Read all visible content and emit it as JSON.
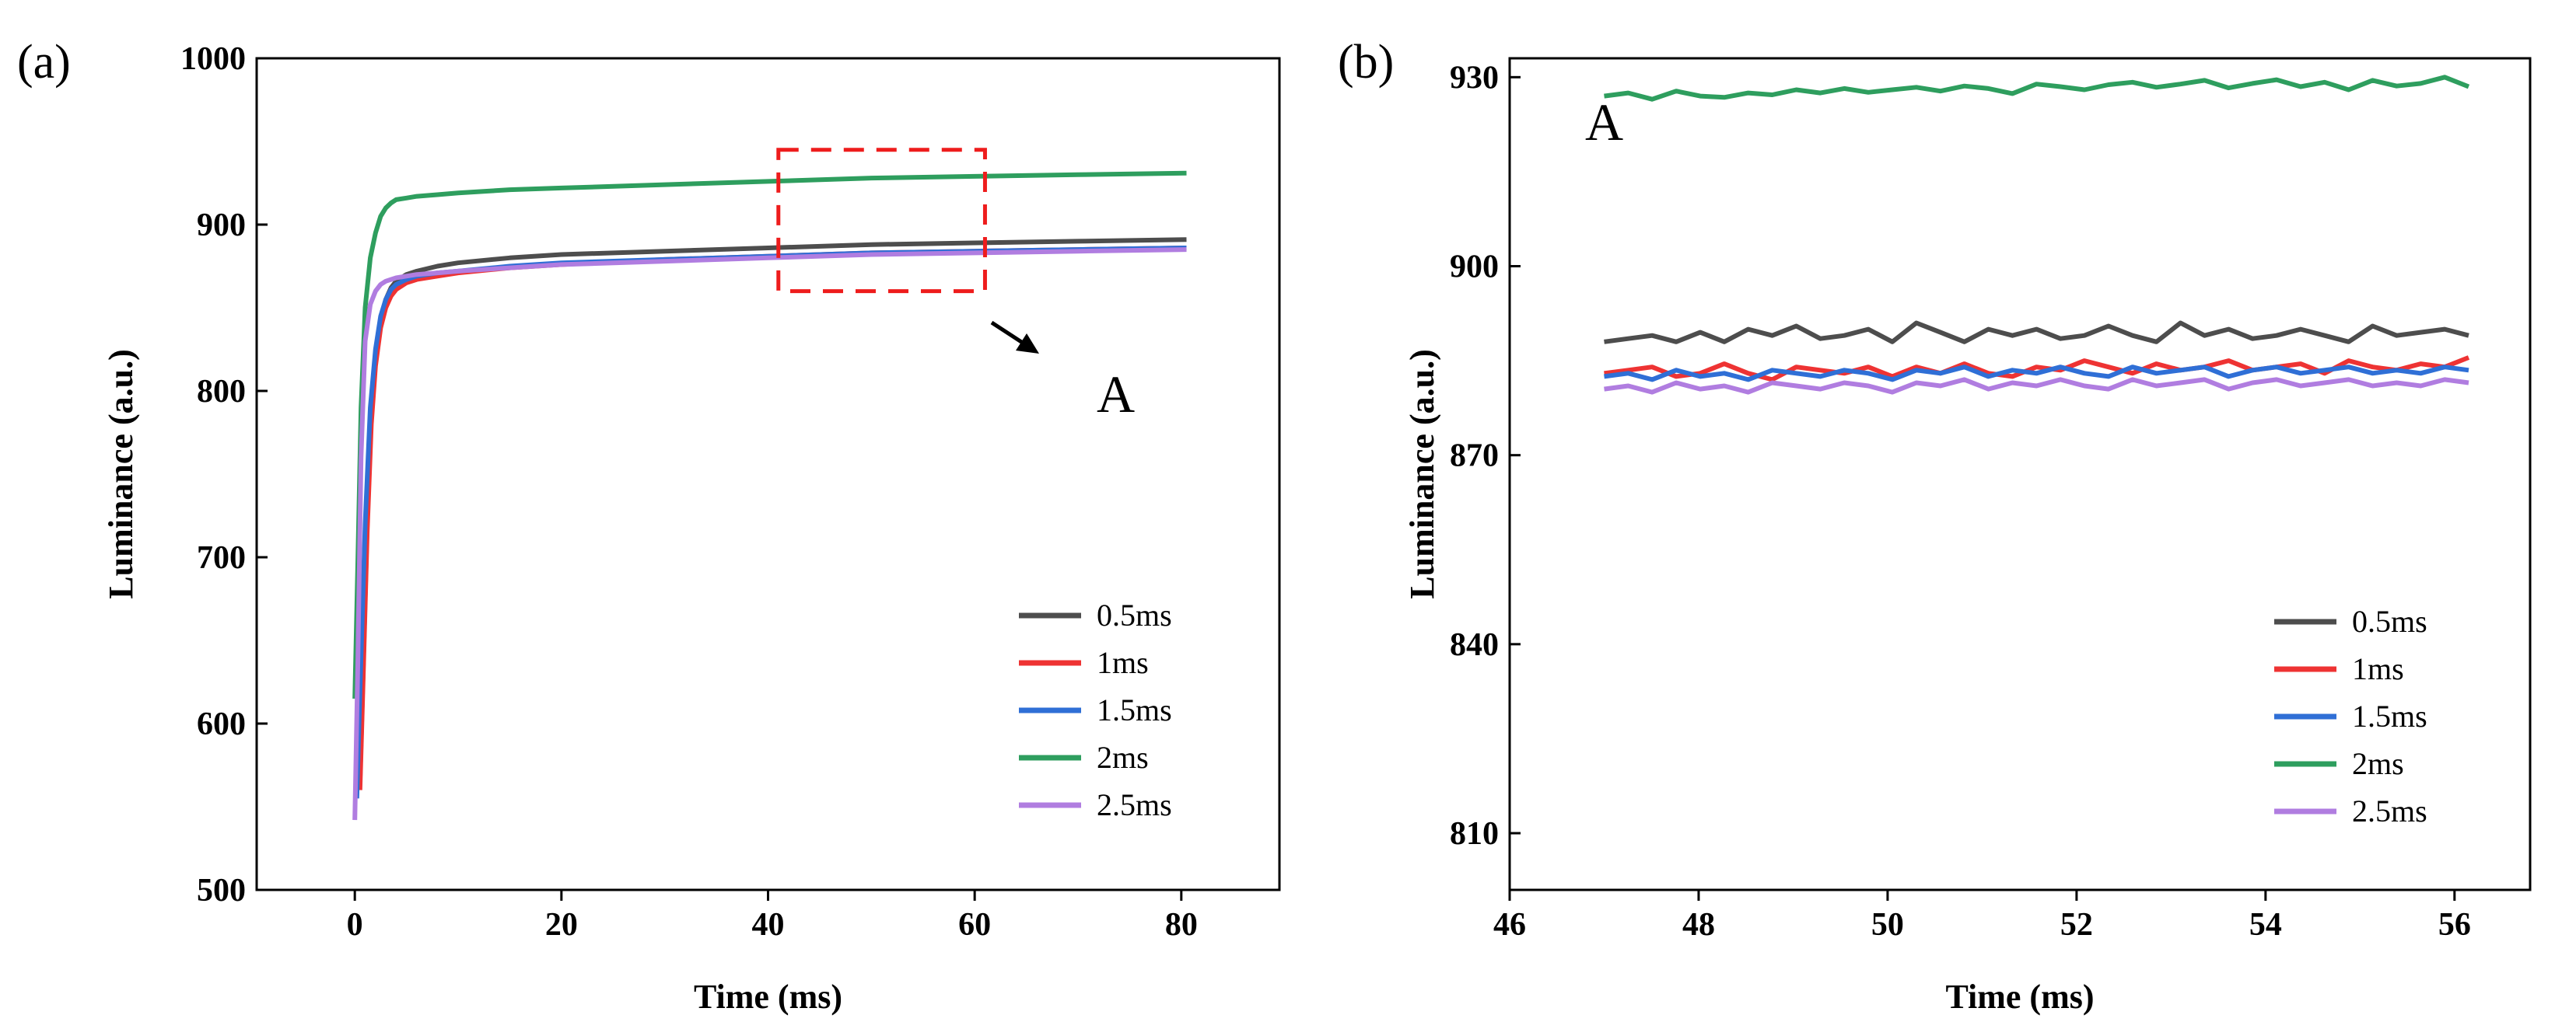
{
  "chart_data": [
    {
      "panel_label": "(a)",
      "type": "line",
      "xlabel": "Time (ms)",
      "ylabel": "Luminance (a.u.)",
      "xlim": [
        -9.5,
        89.5
      ],
      "ylim": [
        500,
        1000
      ],
      "xticks": [
        0,
        20,
        40,
        60,
        80
      ],
      "yticks": [
        500,
        600,
        700,
        800,
        900,
        1000
      ],
      "legend_position": "bottom-right",
      "zoom_box": {
        "x": [
          41,
          61
        ],
        "y": [
          860,
          945
        ]
      },
      "annotation": "A",
      "series": [
        {
          "name": "0.5ms",
          "color": "#4d4d4d",
          "x": [
            0.5,
            0.8,
            1.2,
            1.6,
            2,
            2.5,
            3,
            3.5,
            4,
            5,
            6,
            8,
            10,
            15,
            20,
            30,
            40,
            50,
            60,
            70,
            80.5
          ],
          "y": [
            565,
            630,
            720,
            785,
            820,
            843,
            855,
            862,
            866,
            870,
            872,
            875,
            877,
            880,
            882,
            884,
            886,
            888,
            889,
            890,
            891
          ]
        },
        {
          "name": "1ms",
          "color": "#ee3333",
          "x": [
            0.5,
            0.8,
            1.2,
            1.6,
            2,
            2.5,
            3,
            3.5,
            4,
            5,
            6,
            8,
            10,
            15,
            20,
            30,
            40,
            50,
            60,
            70,
            80.5
          ],
          "y": [
            560,
            625,
            715,
            780,
            815,
            838,
            850,
            857,
            861,
            865,
            867,
            869,
            871,
            874,
            876,
            879,
            881,
            883,
            884,
            885,
            886
          ]
        },
        {
          "name": "1.5ms",
          "color": "#2f6fd6",
          "x": [
            0.2,
            0.5,
            1,
            1.5,
            2,
            2.5,
            3,
            3.5,
            4,
            5,
            6,
            8,
            10,
            15,
            20,
            30,
            40,
            50,
            60,
            70,
            80.5
          ],
          "y": [
            555,
            620,
            720,
            790,
            825,
            845,
            855,
            861,
            864,
            867,
            869,
            871,
            872,
            875,
            877,
            879,
            881,
            883,
            884,
            885,
            886
          ]
        },
        {
          "name": "2ms",
          "color": "#2e9e5e",
          "x": [
            0,
            0.3,
            0.6,
            1,
            1.5,
            2,
            2.5,
            3,
            3.5,
            4,
            5,
            6,
            8,
            10,
            15,
            20,
            30,
            40,
            50,
            60,
            70,
            80.5
          ],
          "y": [
            615,
            700,
            790,
            850,
            880,
            895,
            905,
            910,
            913,
            915,
            916,
            917,
            918,
            919,
            921,
            922,
            924,
            926,
            928,
            929,
            930,
            931
          ]
        },
        {
          "name": "2.5ms",
          "color": "#b07de0",
          "x": [
            0,
            0.3,
            0.6,
            1,
            1.5,
            2,
            2.5,
            3,
            3.5,
            4,
            5,
            6,
            8,
            10,
            15,
            20,
            30,
            40,
            50,
            60,
            70,
            80.5
          ],
          "y": [
            542,
            640,
            760,
            830,
            852,
            860,
            864,
            866,
            867,
            868,
            869,
            870,
            871,
            872,
            874,
            876,
            878,
            880,
            882,
            883,
            884,
            885
          ]
        }
      ]
    },
    {
      "panel_label": "(b)",
      "type": "line",
      "xlabel": "Time (ms)",
      "ylabel": "Luminance (a.u.)",
      "xlim": [
        46,
        56.8
      ],
      "ylim": [
        801,
        933
      ],
      "xticks": [
        46,
        48,
        50,
        52,
        54,
        56
      ],
      "yticks": [
        810,
        840,
        870,
        900,
        930
      ],
      "legend_position": "bottom-right",
      "annotation": "A",
      "series": [
        {
          "name": "0.5ms",
          "color": "#4d4d4d",
          "x_start": 47,
          "x_end": 56.15,
          "y": [
            888,
            888.5,
            889,
            888,
            889.5,
            888,
            890,
            889,
            890.5,
            888.5,
            889,
            890,
            888,
            891,
            889.5,
            888,
            890,
            889,
            890,
            888.5,
            889,
            890.5,
            889,
            888,
            891,
            889,
            890,
            888.5,
            889,
            890,
            889,
            888,
            890.5,
            889,
            889.5,
            890,
            889
          ]
        },
        {
          "name": "1ms",
          "color": "#ee3333",
          "x_start": 47,
          "x_end": 56.15,
          "y": [
            883,
            883.5,
            884,
            882.5,
            883,
            884.5,
            883,
            882,
            884,
            883.5,
            883,
            884,
            882.5,
            884,
            883,
            884.5,
            883,
            882.5,
            884,
            883.5,
            885,
            884,
            883,
            884.5,
            883.5,
            884,
            885,
            883.5,
            884,
            884.5,
            883,
            885,
            884,
            883.5,
            884.5,
            884,
            885.5
          ]
        },
        {
          "name": "1.5ms",
          "color": "#2f6fd6",
          "x_start": 47,
          "x_end": 56.15,
          "y": [
            882.5,
            883,
            882,
            883.5,
            882.5,
            883,
            882,
            883.5,
            883,
            882.5,
            883.5,
            883,
            882,
            883.5,
            883,
            884,
            882.5,
            883.5,
            883,
            884,
            883,
            882.5,
            884,
            883,
            883.5,
            884,
            882.5,
            883.5,
            884,
            883,
            883.5,
            884,
            883,
            883.5,
            883,
            884,
            883.5
          ]
        },
        {
          "name": "2ms",
          "color": "#2e9e5e",
          "x_start": 47,
          "x_end": 56.15,
          "y": [
            927,
            927.5,
            926.5,
            927.8,
            927,
            926.8,
            927.5,
            927.2,
            928,
            927.5,
            928.2,
            927.6,
            928,
            928.4,
            927.8,
            928.6,
            928.2,
            927.4,
            928.9,
            928.5,
            928,
            928.8,
            929.2,
            928.4,
            928.9,
            929.5,
            928.3,
            929,
            929.6,
            928.5,
            929.2,
            928,
            929.5,
            928.6,
            929,
            930,
            928.5
          ]
        },
        {
          "name": "2.5ms",
          "color": "#b07de0",
          "x_start": 47,
          "x_end": 56.15,
          "y": [
            880.5,
            881,
            880,
            881.5,
            880.5,
            881,
            880,
            881.5,
            881,
            880.5,
            881.5,
            881,
            880,
            881.5,
            881,
            882,
            880.5,
            881.5,
            881,
            882,
            881,
            880.5,
            882,
            881,
            881.5,
            882,
            880.5,
            881.5,
            882,
            881,
            881.5,
            882,
            881,
            881.5,
            881,
            882,
            881.5
          ]
        }
      ]
    }
  ]
}
